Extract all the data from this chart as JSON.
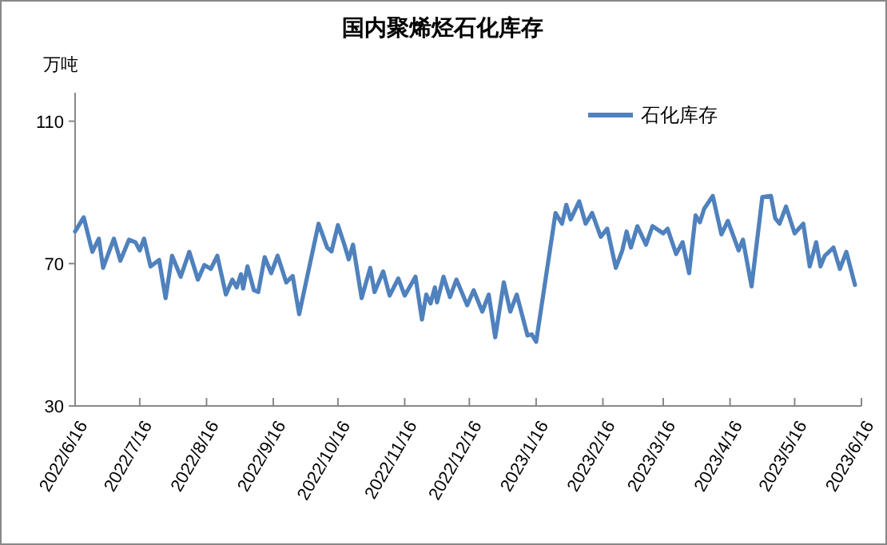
{
  "chart_data": {
    "type": "line",
    "title": "国内聚烯烃石化库存",
    "ylabel": "万吨",
    "legend": "top right",
    "xlim": [
      "2022-06-16",
      "2023-06-16"
    ],
    "xticks": [
      {
        "value": "2022-06-16",
        "label": "2022/6/16"
      },
      {
        "value": "2022-07-16",
        "label": "2022/7/16"
      },
      {
        "value": "2022-08-16",
        "label": "2022/8/16"
      },
      {
        "value": "2022-09-16",
        "label": "2022/9/16"
      },
      {
        "value": "2022-10-16",
        "label": "2022/10/16"
      },
      {
        "value": "2022-11-16",
        "label": "2022/11/16"
      },
      {
        "value": "2022-12-16",
        "label": "2022/12/16"
      },
      {
        "value": "2023-01-16",
        "label": "2023/1/16"
      },
      {
        "value": "2023-02-16",
        "label": "2023/2/16"
      },
      {
        "value": "2023-03-16",
        "label": "2023/3/16"
      },
      {
        "value": "2023-04-16",
        "label": "2023/4/16"
      },
      {
        "value": "2023-05-16",
        "label": "2023/5/16"
      },
      {
        "value": "2023-06-16",
        "label": "2023/6/16"
      }
    ],
    "ylim": [
      30,
      118
    ],
    "yticks": [
      30,
      70,
      110
    ],
    "x": [
      "2022-06-16",
      "2022-06-20",
      "2022-06-24",
      "2022-06-27",
      "2022-06-29",
      "2022-07-04",
      "2022-07-07",
      "2022-07-11",
      "2022-07-14",
      "2022-07-16",
      "2022-07-18",
      "2022-07-21",
      "2022-07-25",
      "2022-07-28",
      "2022-07-31",
      "2022-08-04",
      "2022-08-08",
      "2022-08-12",
      "2022-08-15",
      "2022-08-18",
      "2022-08-21",
      "2022-08-25",
      "2022-08-28",
      "2022-08-30",
      "2022-09-01",
      "2022-09-02",
      "2022-09-04",
      "2022-09-07",
      "2022-09-09",
      "2022-09-12",
      "2022-09-15",
      "2022-09-18",
      "2022-09-22",
      "2022-09-25",
      "2022-09-28",
      "2022-10-07",
      "2022-10-11",
      "2022-10-13",
      "2022-10-16",
      "2022-10-19",
      "2022-10-21",
      "2022-10-23",
      "2022-10-27",
      "2022-10-31",
      "2022-11-02",
      "2022-11-06",
      "2022-11-09",
      "2022-11-13",
      "2022-11-16",
      "2022-11-21",
      "2022-11-24",
      "2022-11-26",
      "2022-11-28",
      "2022-11-30",
      "2022-12-01",
      "2022-12-04",
      "2022-12-07",
      "2022-12-10",
      "2022-12-15",
      "2022-12-18",
      "2022-12-22",
      "2022-12-25",
      "2022-12-28",
      "2023-01-01",
      "2023-01-04",
      "2023-01-07",
      "2023-01-12",
      "2023-01-14",
      "2023-01-16",
      "2023-01-25",
      "2023-01-28",
      "2023-01-30",
      "2023-02-01",
      "2023-02-05",
      "2023-02-08",
      "2023-02-11",
      "2023-02-15",
      "2023-02-18",
      "2023-02-22",
      "2023-02-25",
      "2023-02-27",
      "2023-03-01",
      "2023-03-04",
      "2023-03-08",
      "2023-03-11",
      "2023-03-16",
      "2023-03-18",
      "2023-03-22",
      "2023-03-25",
      "2023-03-28",
      "2023-03-31",
      "2023-04-02",
      "2023-04-04",
      "2023-04-08",
      "2023-04-12",
      "2023-04-15",
      "2023-04-20",
      "2023-04-22",
      "2023-04-26",
      "2023-05-01",
      "2023-05-05",
      "2023-05-07",
      "2023-05-09",
      "2023-05-12",
      "2023-05-16",
      "2023-05-20",
      "2023-05-23",
      "2023-05-26",
      "2023-05-28",
      "2023-05-30",
      "2023-06-03",
      "2023-06-06",
      "2023-06-09",
      "2023-06-13"
    ],
    "series": [
      {
        "name": "石化库存",
        "color": "#4f81bd",
        "values": [
          79.0,
          83.0,
          73.3,
          77.0,
          68.8,
          77.0,
          70.8,
          76.7,
          76.0,
          73.7,
          77.0,
          69.2,
          71.0,
          60.3,
          72.2,
          66.3,
          73.3,
          65.5,
          69.6,
          68.5,
          72.2,
          61.3,
          65.5,
          63.3,
          67.0,
          63.0,
          69.2,
          62.5,
          62.0,
          71.8,
          67.3,
          72.2,
          64.7,
          66.5,
          55.8,
          81.2,
          74.5,
          73.4,
          80.8,
          75.3,
          71.2,
          75.3,
          60.3,
          68.8,
          62.0,
          67.8,
          61.0,
          65.8,
          61.0,
          66.3,
          54.3,
          61.3,
          58.8,
          63.3,
          59.1,
          66.3,
          60.6,
          65.5,
          58.3,
          62.5,
          56.5,
          61.3,
          49.3,
          64.7,
          56.5,
          61.3,
          49.8,
          50.1,
          48.0,
          84.2,
          81.2,
          86.5,
          82.4,
          87.5,
          81.2,
          84.2,
          77.5,
          79.8,
          68.8,
          73.7,
          79.0,
          74.5,
          80.5,
          75.3,
          80.5,
          78.5,
          79.8,
          72.7,
          76.0,
          67.3,
          83.5,
          81.6,
          85.4,
          89.0,
          78.2,
          82.0,
          73.7,
          76.7,
          63.6,
          88.7,
          89.0,
          82.7,
          81.2,
          86.0,
          78.5,
          81.2,
          69.2,
          76.0,
          69.2,
          72.2,
          74.5,
          68.5,
          73.3,
          64.0
        ]
      }
    ]
  }
}
